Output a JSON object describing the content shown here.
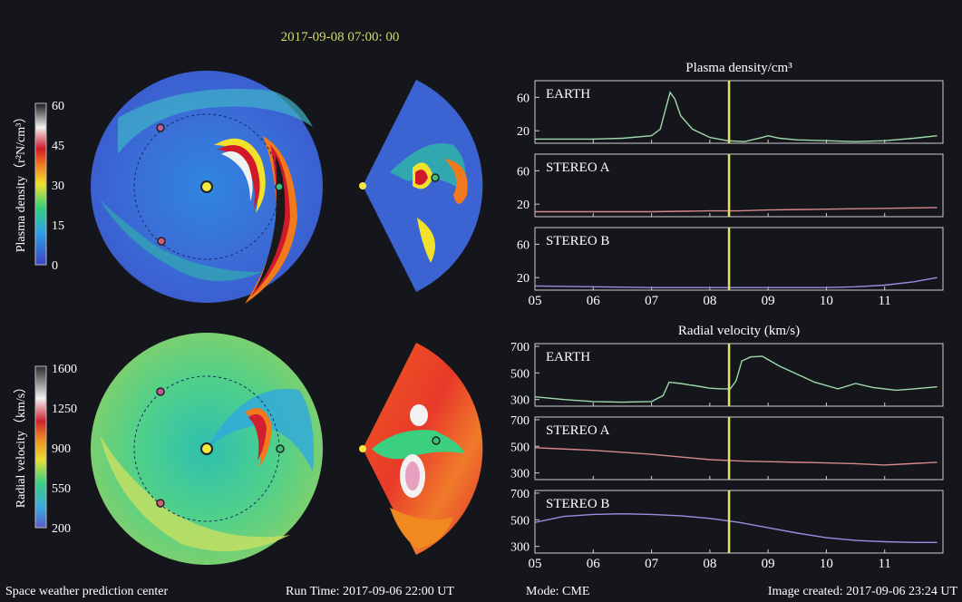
{
  "header": {
    "timestamp": "2017-09-08 07:00: 00"
  },
  "colors": {
    "background": "#15151c",
    "timestamp": "#d6d86a",
    "earth": "#9fd9a8",
    "stereo_a": "#d98a8a",
    "stereo_b": "#9a8ee0",
    "marker": "#e6e06a"
  },
  "colorbars": [
    {
      "label": "Plasma density（r²N/cm³）",
      "ticks": [
        "60",
        "45",
        "30",
        "15",
        "0"
      ]
    },
    {
      "label": "Radial velocity（km/s）",
      "ticks": [
        "1600",
        "1250",
        "900",
        "550",
        "200"
      ]
    }
  ],
  "footer": {
    "left": "Space weather prediction center",
    "run_time": "Run Time: 2017-09-06 22:00 UT",
    "mode": "Mode: CME",
    "image_created": "Image created: 2017-09-06 23:24 UT"
  },
  "chart_data": [
    {
      "type": "line",
      "title": "Plasma density/cm³",
      "x_ticks": [
        "05",
        "06",
        "07",
        "08",
        "09",
        "10",
        "11"
      ],
      "xlim": [
        5,
        12
      ],
      "marker_x": 8.33,
      "panels": [
        {
          "name": "EARTH",
          "ylim": [
            5,
            80
          ],
          "yticks": [
            "60",
            "20"
          ],
          "ytick_values": [
            60,
            20
          ],
          "x": [
            5.0,
            5.5,
            6.0,
            6.5,
            7.0,
            7.15,
            7.25,
            7.32,
            7.4,
            7.5,
            7.7,
            8.0,
            8.3,
            8.6,
            8.9,
            9.0,
            9.2,
            9.5,
            10.0,
            10.5,
            11.0,
            11.5,
            11.9
          ],
          "values": [
            10,
            10,
            10,
            11,
            14,
            22,
            48,
            66,
            58,
            38,
            22,
            12,
            8,
            7,
            12,
            14,
            11,
            9,
            8,
            7,
            8,
            11,
            14
          ]
        },
        {
          "name": "STEREO A",
          "ylim": [
            5,
            80
          ],
          "yticks": [
            "60",
            "20"
          ],
          "ytick_values": [
            60,
            20
          ],
          "x": [
            5.0,
            6.0,
            7.0,
            8.0,
            8.5,
            9.0,
            10.0,
            11.0,
            11.9
          ],
          "values": [
            11,
            11,
            11,
            12,
            12,
            13,
            14,
            15,
            16
          ]
        },
        {
          "name": "STEREO B",
          "ylim": [
            5,
            80
          ],
          "yticks": [
            "60",
            "20"
          ],
          "ytick_values": [
            60,
            20
          ],
          "x": [
            5.0,
            6.0,
            7.0,
            8.0,
            9.0,
            10.0,
            10.5,
            11.0,
            11.5,
            11.9
          ],
          "values": [
            10,
            9,
            8,
            8,
            8,
            8,
            9,
            11,
            15,
            20
          ]
        }
      ]
    },
    {
      "type": "line",
      "title": "Radial velocity (km/s)",
      "x_ticks": [
        "05",
        "06",
        "07",
        "08",
        "09",
        "10",
        "11"
      ],
      "xlim": [
        5,
        12
      ],
      "marker_x": 8.33,
      "panels": [
        {
          "name": "EARTH",
          "ylim": [
            250,
            720
          ],
          "yticks": [
            "700",
            "500",
            "300"
          ],
          "ytick_values": [
            700,
            500,
            300
          ],
          "x": [
            5.0,
            5.5,
            6.0,
            6.5,
            7.0,
            7.2,
            7.3,
            7.5,
            7.8,
            8.0,
            8.2,
            8.35,
            8.45,
            8.55,
            8.7,
            8.9,
            9.0,
            9.2,
            9.5,
            9.8,
            10.2,
            10.5,
            10.8,
            11.2,
            11.5,
            11.9
          ],
          "values": [
            320,
            300,
            285,
            280,
            285,
            330,
            430,
            420,
            400,
            385,
            380,
            380,
            440,
            590,
            620,
            625,
            600,
            550,
            490,
            430,
            380,
            420,
            390,
            370,
            380,
            395
          ]
        },
        {
          "name": "STEREO A",
          "ylim": [
            250,
            720
          ],
          "yticks": [
            "700",
            "500",
            "300"
          ],
          "ytick_values": [
            700,
            500,
            300
          ],
          "x": [
            5.0,
            6.0,
            7.0,
            8.0,
            8.5,
            9.0,
            10.0,
            10.5,
            11.0,
            11.9
          ],
          "values": [
            490,
            470,
            440,
            400,
            390,
            385,
            375,
            370,
            360,
            380
          ]
        },
        {
          "name": "STEREO B",
          "ylim": [
            250,
            720
          ],
          "yticks": [
            "700",
            "500",
            "300"
          ],
          "ytick_values": [
            700,
            500,
            300
          ],
          "x": [
            5.0,
            5.5,
            6.0,
            6.5,
            7.0,
            7.5,
            8.0,
            8.5,
            9.0,
            9.5,
            10.0,
            10.5,
            11.0,
            11.5,
            11.9
          ],
          "values": [
            480,
            525,
            540,
            545,
            540,
            530,
            510,
            480,
            440,
            400,
            365,
            345,
            335,
            330,
            330
          ]
        }
      ]
    }
  ]
}
